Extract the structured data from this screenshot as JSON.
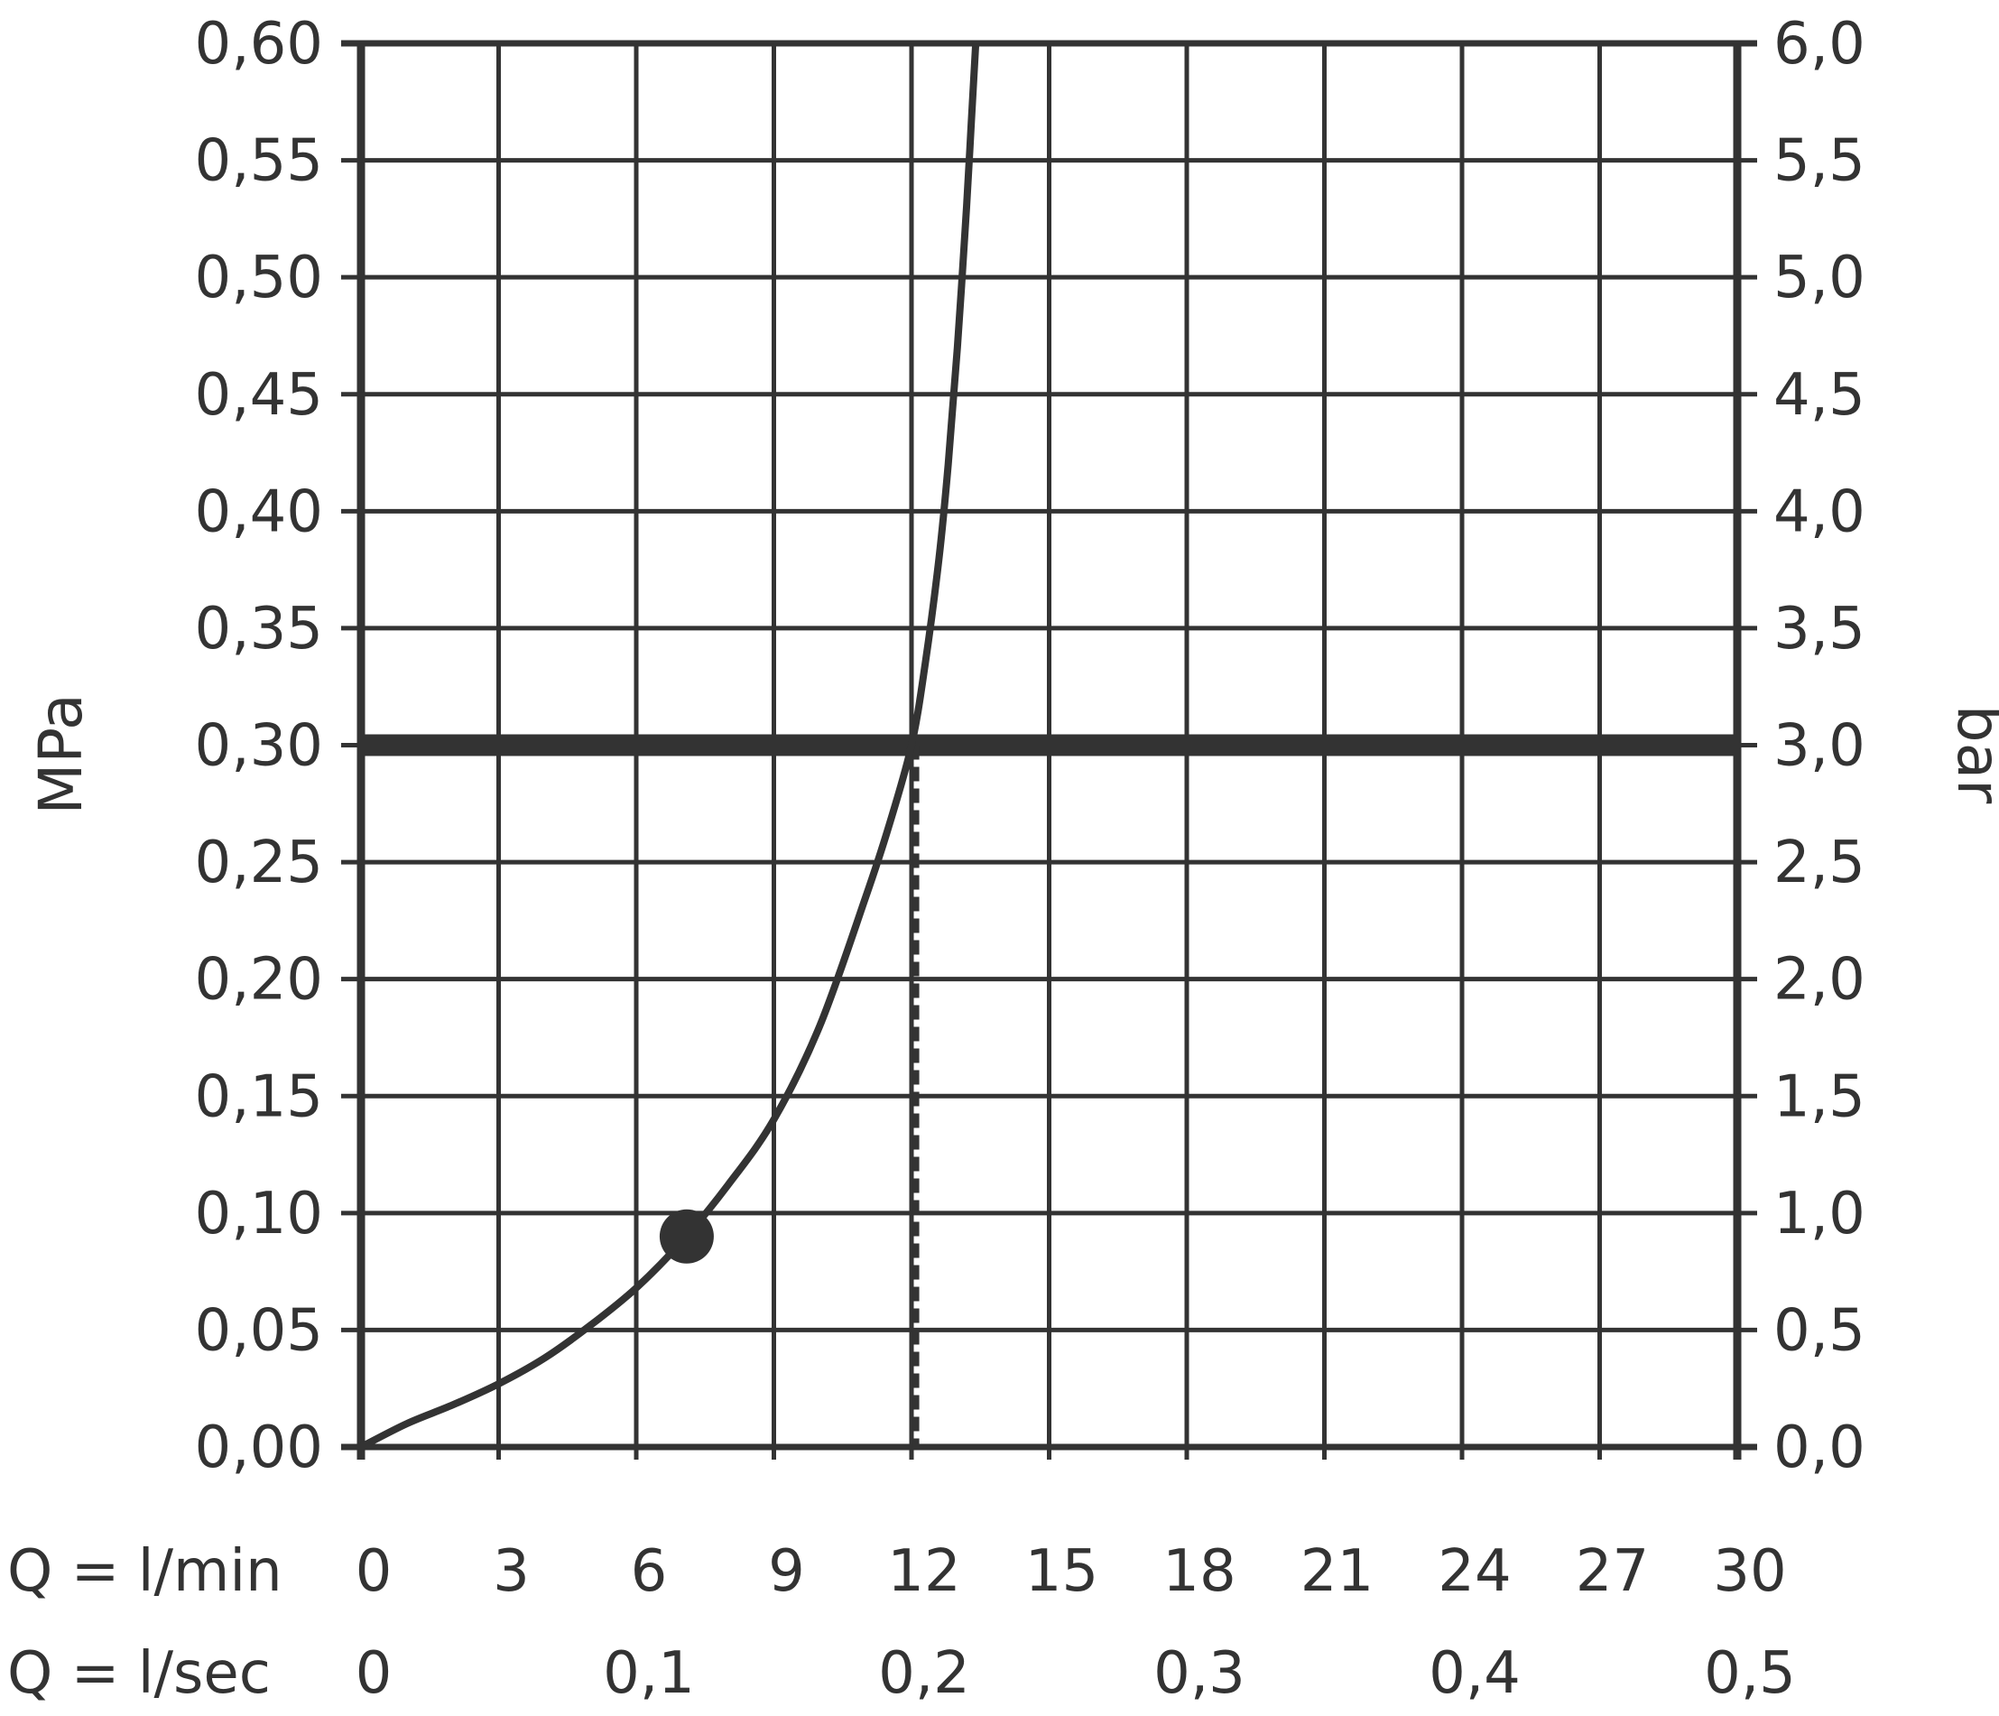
{
  "chart_data": {
    "type": "line",
    "x_axis": {
      "range": [
        0,
        30
      ],
      "ticks": [
        0,
        3,
        6,
        9,
        12,
        15,
        18,
        21,
        24,
        27,
        30
      ],
      "row_label": "Q = l/min"
    },
    "x2_axis": {
      "row_label": "Q = l/sec",
      "tick_labels": [
        "0",
        "0,1",
        "0,2",
        "0,3",
        "0,4",
        "0,5"
      ],
      "tick_positions_lmin": [
        0,
        6,
        12,
        18,
        24,
        30
      ]
    },
    "y_axis": {
      "label": "MPa",
      "range": [
        0,
        0.6
      ],
      "tick_values": [
        0,
        0.05,
        0.1,
        0.15,
        0.2,
        0.25,
        0.3,
        0.35,
        0.4,
        0.45,
        0.5,
        0.55,
        0.6
      ],
      "tick_labels": [
        "0,00",
        "0,05",
        "0,10",
        "0,15",
        "0,20",
        "0,25",
        "0,30",
        "0,35",
        "0,40",
        "0,45",
        "0,50",
        "0,55",
        "0,60"
      ]
    },
    "y2_axis": {
      "label": "bar",
      "tick_labels": [
        "0,0",
        "0,5",
        "1,0",
        "1,5",
        "2,0",
        "2,5",
        "3,0",
        "3,5",
        "4,0",
        "4,5",
        "5,0",
        "5,5",
        "6,0"
      ]
    },
    "grid": true,
    "series": [
      {
        "x": [
          0,
          1,
          2,
          3,
          4,
          5,
          6,
          7,
          8,
          9,
          10,
          11,
          11.5,
          12,
          12.3,
          12.6,
          12.8,
          13.0,
          13.2,
          13.3,
          13.4
        ],
        "y": [
          0,
          0.01,
          0.018,
          0.027,
          0.038,
          0.052,
          0.068,
          0.088,
          0.112,
          0.14,
          0.18,
          0.235,
          0.265,
          0.3,
          0.335,
          0.38,
          0.42,
          0.47,
          0.53,
          0.565,
          0.6
        ]
      }
    ],
    "reference_line": {
      "y": 0.3
    },
    "dashed_marker": {
      "x": 12.1,
      "y_from": 0,
      "y_to": 0.3
    },
    "highlight_point": {
      "x": 7.1,
      "y": 0.09
    }
  }
}
